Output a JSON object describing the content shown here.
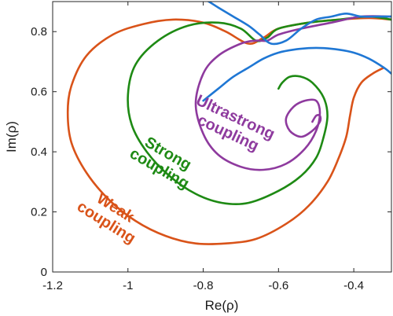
{
  "chart_data": {
    "type": "line",
    "xlabel": "Re(ρ)",
    "ylabel": "Im(ρ)",
    "xlim": [
      -1.2,
      -0.3
    ],
    "ylim": [
      0,
      0.9
    ],
    "xticks": [
      -1.2,
      -1,
      -0.8,
      -0.6,
      -0.4
    ],
    "xtick_labels": [
      "-1.2",
      "-1",
      "-0.8",
      "-0.6",
      "-0.4"
    ],
    "yticks": [
      0,
      0.2,
      0.4,
      0.6,
      0.8
    ],
    "ytick_labels": [
      "0",
      "0.2",
      "0.4",
      "0.6",
      "0.8"
    ],
    "grid": false,
    "legend": "none",
    "series": [
      {
        "name": "Weak coupling",
        "label_lines": [
          "Weak",
          "coupling"
        ],
        "color": "#d95319",
        "x": [
          -0.3,
          -0.36,
          -0.44,
          -0.52,
          -0.6,
          -0.64,
          -0.68,
          -0.74,
          -0.8,
          -0.88,
          -0.96,
          -1.04,
          -1.11,
          -1.15,
          -1.16,
          -1.15,
          -1.11,
          -1.05,
          -0.98,
          -0.9,
          -0.82,
          -0.74,
          -0.66,
          -0.58,
          -0.52,
          -0.47,
          -0.44,
          -0.42,
          -0.41,
          -0.4,
          -0.38,
          -0.35,
          -0.32
        ],
        "y": [
          0.84,
          0.845,
          0.84,
          0.83,
          0.81,
          0.78,
          0.76,
          0.8,
          0.83,
          0.84,
          0.825,
          0.79,
          0.72,
          0.62,
          0.53,
          0.43,
          0.33,
          0.24,
          0.17,
          0.12,
          0.095,
          0.095,
          0.11,
          0.16,
          0.22,
          0.3,
          0.38,
          0.45,
          0.52,
          0.58,
          0.63,
          0.66,
          0.68
        ]
      },
      {
        "name": "Strong coupling",
        "label_lines": [
          "Strong",
          "coupling"
        ],
        "color": "#1e8a14",
        "x": [
          -0.3,
          -0.36,
          -0.44,
          -0.52,
          -0.6,
          -0.63,
          -0.66,
          -0.7,
          -0.76,
          -0.84,
          -0.92,
          -0.98,
          -1.0,
          -0.99,
          -0.95,
          -0.89,
          -0.82,
          -0.75,
          -0.68,
          -0.6,
          -0.54,
          -0.5,
          -0.48,
          -0.47,
          -0.48,
          -0.51,
          -0.54,
          -0.57,
          -0.59,
          -0.6
        ],
        "y": [
          0.84,
          0.85,
          0.84,
          0.83,
          0.81,
          0.78,
          0.77,
          0.81,
          0.83,
          0.82,
          0.77,
          0.69,
          0.59,
          0.49,
          0.4,
          0.32,
          0.26,
          0.23,
          0.23,
          0.27,
          0.32,
          0.38,
          0.45,
          0.52,
          0.58,
          0.63,
          0.65,
          0.65,
          0.63,
          0.61
        ]
      },
      {
        "name": "Ultrastrong coupling",
        "label_lines": [
          "Ultrastrong",
          "coupling"
        ],
        "color": "#8e3a9e",
        "x": [
          -0.3,
          -0.38,
          -0.46,
          -0.54,
          -0.6,
          -0.63,
          -0.66,
          -0.7,
          -0.76,
          -0.8,
          -0.82,
          -0.8,
          -0.76,
          -0.7,
          -0.64,
          -0.58,
          -0.53,
          -0.5,
          -0.49,
          -0.5,
          -0.53,
          -0.56,
          -0.58,
          -0.57,
          -0.54,
          -0.51,
          -0.49,
          -0.49,
          -0.5,
          -0.51
        ],
        "y": [
          0.85,
          0.85,
          0.83,
          0.81,
          0.79,
          0.77,
          0.77,
          0.76,
          0.72,
          0.66,
          0.56,
          0.46,
          0.39,
          0.35,
          0.34,
          0.36,
          0.41,
          0.47,
          0.53,
          0.57,
          0.57,
          0.55,
          0.51,
          0.47,
          0.45,
          0.47,
          0.5,
          0.52,
          0.52,
          0.5
        ]
      },
      {
        "name": "Upper trajectory (blue)",
        "color": "#1f77d4",
        "x": [
          -0.85,
          -0.8,
          -0.76,
          -0.72,
          -0.68,
          -0.65,
          -0.62,
          -0.58,
          -0.54,
          -0.5,
          -0.46,
          -0.42,
          -0.38,
          -0.34,
          -0.3
        ],
        "y": [
          0.93,
          0.91,
          0.88,
          0.85,
          0.82,
          0.79,
          0.76,
          0.77,
          0.81,
          0.84,
          0.85,
          0.86,
          0.85,
          0.85,
          0.85
        ]
      },
      {
        "name": "Lower trajectory (blue)",
        "color": "#1f77d4",
        "x": [
          -0.8,
          -0.76,
          -0.72,
          -0.68,
          -0.64,
          -0.6,
          -0.56,
          -0.52,
          -0.48,
          -0.44,
          -0.4,
          -0.36,
          -0.32,
          -0.3
        ],
        "y": [
          0.57,
          0.61,
          0.65,
          0.68,
          0.71,
          0.73,
          0.74,
          0.745,
          0.745,
          0.74,
          0.73,
          0.71,
          0.68,
          0.66
        ]
      }
    ],
    "annotations": [
      {
        "text": "Weak\ncoupling",
        "x": -1.04,
        "y": 0.2,
        "rotation": 32
      },
      {
        "text": "Strong\ncoupling",
        "x": -0.9,
        "y": 0.38,
        "rotation": 30
      },
      {
        "text": "Ultrastrong\ncoupling",
        "x": -0.72,
        "y": 0.5,
        "rotation": 25
      }
    ]
  }
}
